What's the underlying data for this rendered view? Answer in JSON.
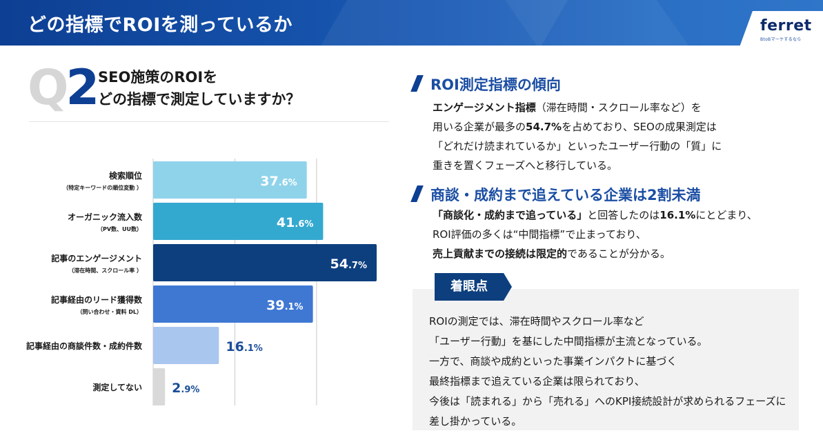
{
  "header": {
    "title": "どの指標でROIを測っているか"
  },
  "logo": {
    "name": "ferret",
    "tagline": "BtoBマーケするなら"
  },
  "question": {
    "mark_q": "Q",
    "mark_num": "2",
    "line1": "SEO施策のROIを",
    "line2": "どの指標で測定していますか？"
  },
  "chart_data": {
    "type": "bar",
    "orientation": "horizontal",
    "unit": "%",
    "xlim": [
      0,
      60
    ],
    "categories": [
      {
        "label": "検索順位",
        "sub": "（特定キーワードの順位変動 ）"
      },
      {
        "label": "オーガニック流入数",
        "sub": "（PV数、UU数）"
      },
      {
        "label": "記事のエンゲージメント",
        "sub": "（滞在時間、スクロール率 ）"
      },
      {
        "label": "記事経由のリード獲得数",
        "sub": "（問い合わせ・資料 DL）"
      },
      {
        "label": "記事経由の商談件数・成約件数",
        "sub": ""
      },
      {
        "label": "測定してない",
        "sub": ""
      }
    ],
    "values": [
      37.6,
      41.6,
      54.7,
      39.1,
      16.1,
      2.9
    ],
    "colors": [
      "#8fd3ea",
      "#34a9d0",
      "#0d3f7e",
      "#3f78d3",
      "#a9c6ef",
      "#d9d9d9"
    ],
    "label_colors": [
      "#ffffff",
      "#ffffff",
      "#ffffff",
      "#ffffff",
      "#1a4d99",
      "#1a4d99"
    ],
    "gridline_color": "#c9c9c9",
    "grid": true
  },
  "section1": {
    "title": "ROI測定指標の傾向",
    "l1_bold": "エンゲージメント指標",
    "l1_rest": "（滞在時間・スクロール率など）を",
    "l2_a": "用いる企業が最多の",
    "l2_bold": "54.7%",
    "l2_b": "を占めており、SEOの成果測定は",
    "l3": "「どれだけ読まれているか」といったユーザー行動の「質」に",
    "l4": "重きを置くフェーズへと移行している。"
  },
  "section2": {
    "title": "商談・成約まで追えている企業は2割未満",
    "l1_bold": "「商談化・成約まで追っている」",
    "l1_a": "と回答したのは",
    "l1_bold2": "16.1%",
    "l1_b": "にとどまり、",
    "l2": "ROI評価の多くは“中間指標”で止まっており、",
    "l3_bold": "売上貢献までの接続は限定的",
    "l3_rest": "であることが分かる。"
  },
  "focus": {
    "tab_label": "着眼点",
    "lines": [
      "ROIの測定では、滞在時間やスクロール率など",
      "「ユーザー行動」を基にした中間指標が主流となっている。",
      "一方で、商談や成約といった事業インパクトに基づく",
      "最終指標まで追えている企業は限られており、",
      "今後は「読まれる」から「売れる」へのKPI接続設計が求められるフェーズに",
      "差し掛かっている。"
    ]
  }
}
